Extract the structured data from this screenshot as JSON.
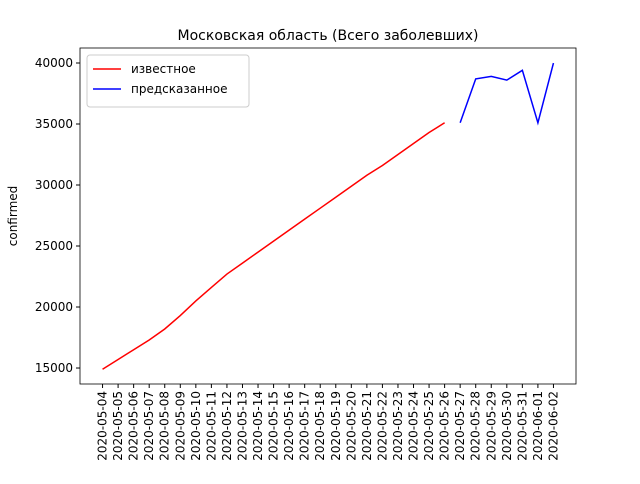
{
  "chart_data": {
    "type": "line",
    "title": "Московская область (Всего заболевших)",
    "y_label": "confirmed",
    "categories": [
      "2020-05-04",
      "2020-05-05",
      "2020-05-06",
      "2020-05-07",
      "2020-05-08",
      "2020-05-09",
      "2020-05-10",
      "2020-05-11",
      "2020-05-12",
      "2020-05-13",
      "2020-05-14",
      "2020-05-15",
      "2020-05-16",
      "2020-05-17",
      "2020-05-18",
      "2020-05-19",
      "2020-05-20",
      "2020-05-21",
      "2020-05-22",
      "2020-05-23",
      "2020-05-24",
      "2020-05-25",
      "2020-05-26",
      "2020-05-27",
      "2020-05-28",
      "2020-05-29",
      "2020-05-30",
      "2020-05-31",
      "2020-06-01",
      "2020-06-02"
    ],
    "series": [
      {
        "name": "известное",
        "color": "#ff0000",
        "values": [
          14900,
          15700,
          16500,
          17300,
          18200,
          19300,
          20500,
          21600,
          22700,
          23600,
          24500,
          25400,
          26300,
          27200,
          28100,
          29000,
          29900,
          30800,
          31600,
          32500,
          33400,
          34300,
          35100,
          null,
          null,
          null,
          null,
          null,
          null,
          null
        ]
      },
      {
        "name": "предсказанное",
        "color": "#0000ff",
        "values": [
          null,
          null,
          null,
          null,
          null,
          null,
          null,
          null,
          null,
          null,
          null,
          null,
          null,
          null,
          null,
          null,
          null,
          null,
          null,
          null,
          null,
          null,
          null,
          35100,
          38700,
          38900,
          38600,
          39400,
          35100,
          40000
        ]
      }
    ],
    "ylim": [
      13690,
      41230
    ],
    "yticks": [
      15000,
      20000,
      25000,
      30000,
      35000,
      40000
    ],
    "legend": "upper left"
  }
}
